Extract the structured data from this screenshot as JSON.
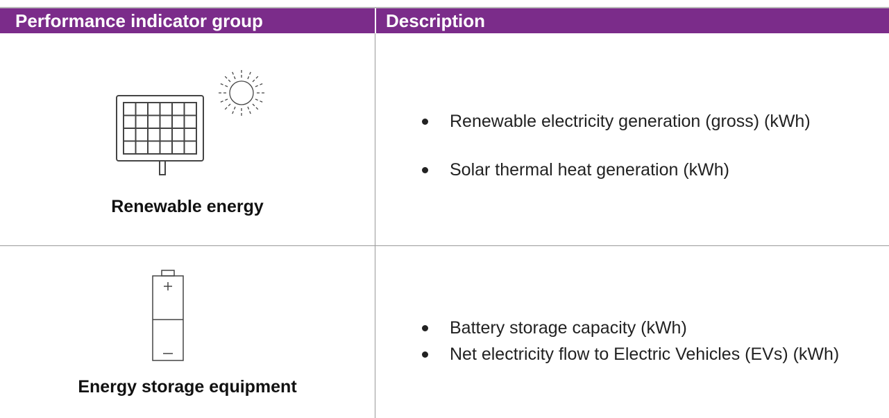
{
  "table": {
    "header": [
      "Performance indicator group",
      "Description"
    ],
    "rows": [
      {
        "label": "Renewable energy",
        "items": [
          "Renewable electricity generation (gross) (kWh)",
          "Solar thermal heat generation (kWh)"
        ]
      },
      {
        "label": "Energy storage equipment",
        "items": [
          "Battery storage capacity (kWh)",
          "Net electricity flow to Electric Vehicles (EVs) (kWh)"
        ]
      }
    ]
  }
}
